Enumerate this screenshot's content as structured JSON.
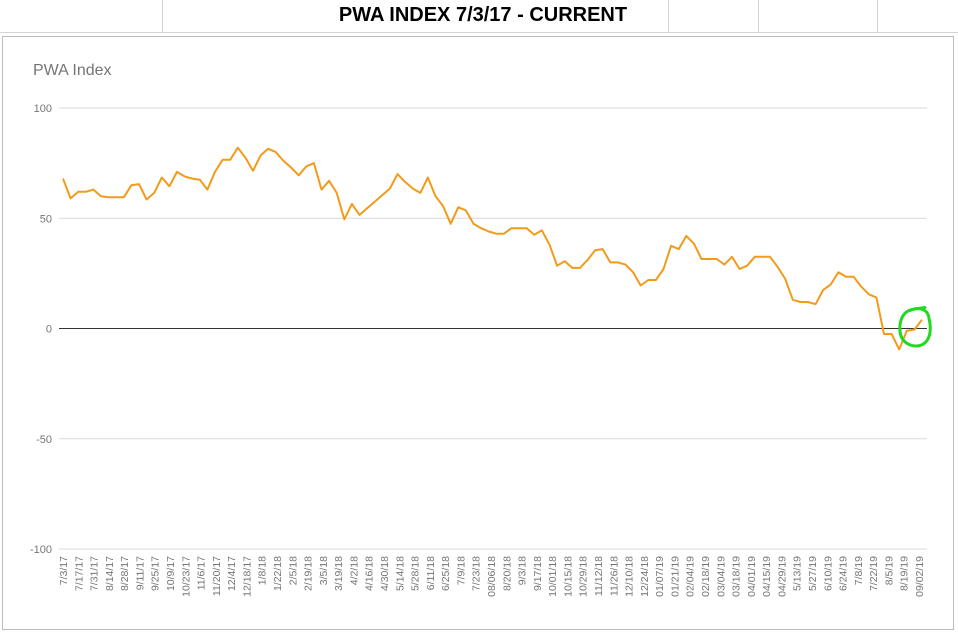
{
  "sheet": {
    "title": "PWA INDEX 7/3/17 - CURRENT"
  },
  "chart_data": {
    "type": "line",
    "title": "PWA Index",
    "xlabel": "",
    "ylabel": "",
    "ylim": [
      -100,
      100
    ],
    "yticks": [
      100,
      50,
      0,
      -50,
      -100
    ],
    "grid": true,
    "legend": "none",
    "x_tick_labels": [
      "7/3/17",
      "7/17/17",
      "7/31/17",
      "8/14/17",
      "8/28/17",
      "9/11/17",
      "9/25/17",
      "10/9/17",
      "10/23/17",
      "11/6/17",
      "11/20/17",
      "12/4/17",
      "12/18/17",
      "1/8/18",
      "1/22/18",
      "2/5/18",
      "2/19/18",
      "3/5/18",
      "3/19/18",
      "4/2/18",
      "4/16/18",
      "4/30/18",
      "5/14/18",
      "5/28/18",
      "6/11/18",
      "6/25/18",
      "7/9/18",
      "7/23/18",
      "08/06/18",
      "8/20/18",
      "9/3/18",
      "9/17/18",
      "10/01/18",
      "10/15/18",
      "10/29/18",
      "11/12/18",
      "11/26/18",
      "12/10/18",
      "12/24/18",
      "01/07/19",
      "01/21/19",
      "02/04/19",
      "02/18/19",
      "03/04/19",
      "03/18/19",
      "04/01/19",
      "04/15/19",
      "04/29/19",
      "5/13/19",
      "5/27/19",
      "6/10/19",
      "6/24/19",
      "7/8/19",
      "7/22/19",
      "8/5/19",
      "8/19/19",
      "09/02/19"
    ],
    "series": [
      {
        "color": "#f29b1a",
        "values": [
          68,
          59,
          62,
          62,
          63,
          60,
          59.5,
          59.5,
          59.5,
          65,
          65.5,
          58.5,
          61.5,
          68.5,
          64.5,
          71,
          69,
          68,
          67.5,
          63,
          71,
          76.5,
          76.5,
          82,
          77.5,
          71.5,
          78.5,
          81.5,
          80,
          76,
          73,
          69.5,
          73.5,
          75,
          63,
          67,
          61.5,
          49.5,
          56.5,
          51.5,
          54.5,
          57.5,
          60.5,
          63.5,
          70,
          66.5,
          63.5,
          61.5,
          68.5,
          60,
          55.5,
          47.5,
          55,
          53.5,
          47.5,
          45.5,
          44,
          43,
          43,
          45.5,
          45.5,
          45.5,
          42.5,
          44.5,
          38,
          28.5,
          30.5,
          27.5,
          27.5,
          31,
          35.5,
          36,
          30,
          30,
          29,
          25.5,
          19.5,
          22,
          22,
          27,
          37.5,
          36,
          42,
          38.5,
          31.5,
          31.5,
          31.5,
          29,
          32.5,
          27,
          28.5,
          32.5,
          32.5,
          32.5,
          28,
          22.5,
          13,
          12,
          12,
          11,
          17.5,
          20,
          25.5,
          23.5,
          23.5,
          19,
          15.5,
          14,
          -2.5,
          -2.5,
          -9.5,
          -1,
          -0.5,
          4
        ]
      }
    ],
    "annotation": {
      "shape": "hand-drawn circle",
      "color": "#22d922",
      "around_value": 0
    }
  }
}
